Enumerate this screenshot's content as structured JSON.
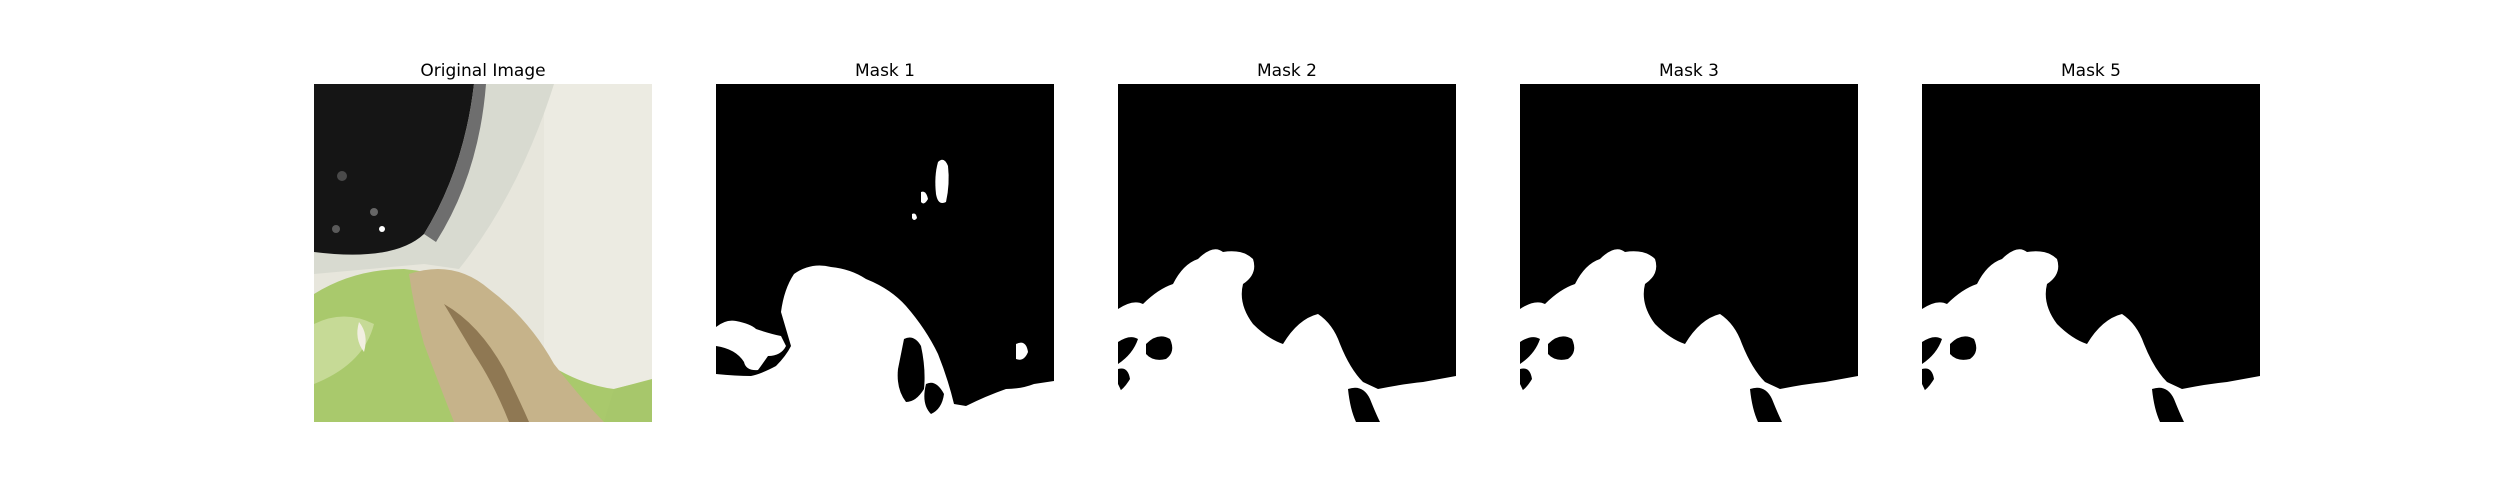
{
  "figure": {
    "panels": [
      {
        "title": "Original Image",
        "kind": "photo"
      },
      {
        "title": "Mask 1",
        "kind": "mask"
      },
      {
        "title": "Mask 2",
        "kind": "mask"
      },
      {
        "title": "Mask 3",
        "kind": "mask"
      },
      {
        "title": "Mask 5",
        "kind": "mask"
      }
    ],
    "colors": {
      "background": "#ffffff",
      "mask_foreground": "#ffffff",
      "mask_background": "#000000",
      "wall": "#e9e8df",
      "pot_rim": "#d6d8ce",
      "soil": "#111111",
      "lettuce_green": "#a8c86a",
      "lettuce_light": "#c8da98",
      "dry_leaf": "#c5b28a",
      "dry_leaf_dark": "#8c7652"
    }
  }
}
